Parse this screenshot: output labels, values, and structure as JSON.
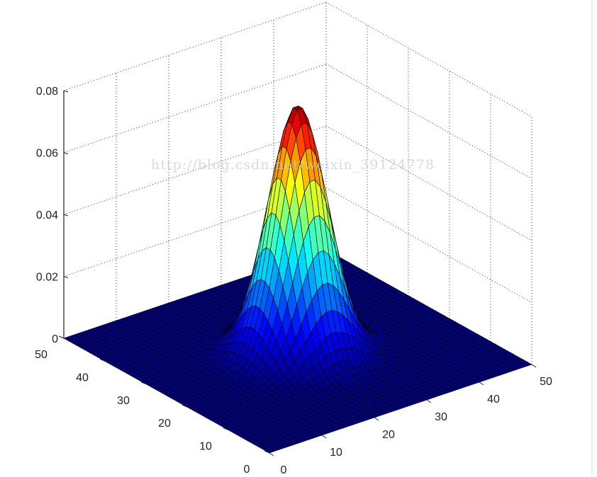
{
  "chart_data": {
    "type": "surface",
    "title": "",
    "xlabel": "",
    "ylabel": "",
    "zlabel": "",
    "xlim": [
      0,
      50
    ],
    "ylim": [
      0,
      50
    ],
    "zlim": [
      0,
      0.08
    ],
    "grid": true,
    "grid_points": 50,
    "surface": {
      "function": "2D Gaussian",
      "peak_value": 0.0796,
      "center": [
        25,
        25
      ],
      "sigma": 4.5
    },
    "colormap": "jet",
    "edge_color": "#000000",
    "x_ticks": [
      "0",
      "10",
      "20",
      "30",
      "40",
      "50"
    ],
    "y_ticks": [
      "0",
      "10",
      "20",
      "30",
      "40",
      "50"
    ],
    "z_ticks": [
      "0",
      "0.02",
      "0.04",
      "0.06",
      "0.08"
    ]
  },
  "watermark": "http://blog.csdn.net/weixin_39124778"
}
